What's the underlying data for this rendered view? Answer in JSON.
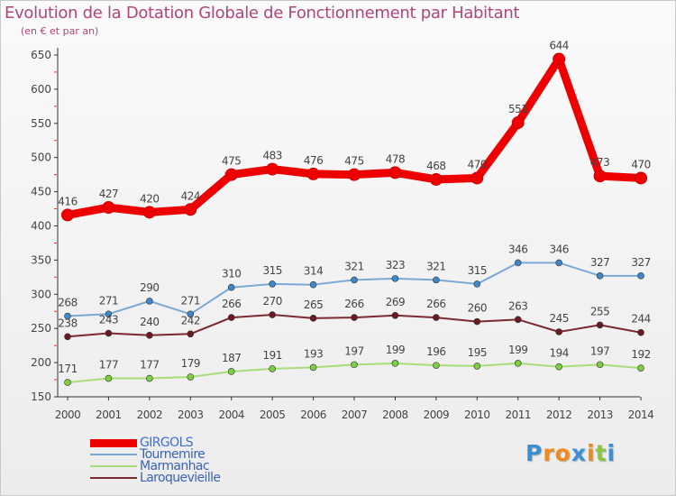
{
  "chart_data": {
    "type": "line",
    "title": "Evolution de la Dotation Globale de Fonctionnement par Habitant",
    "subtitle": "(en € et par an)",
    "xlabel": "",
    "ylabel": "",
    "ylim": [
      150,
      650
    ],
    "yticks": [
      150,
      200,
      250,
      300,
      350,
      400,
      450,
      500,
      550,
      600,
      650
    ],
    "categories": [
      "2000",
      "2001",
      "2002",
      "2003",
      "2004",
      "2005",
      "2006",
      "2007",
      "2008",
      "2009",
      "2010",
      "2011",
      "2012",
      "2013",
      "2014"
    ],
    "grid": false,
    "legend_position": "bottom-left",
    "series": [
      {
        "name": "GIRGOLS",
        "color": "#ee0000",
        "marker_color": "#ee0000",
        "values": [
          416,
          427,
          420,
          424,
          475,
          483,
          476,
          475,
          478,
          468,
          470,
          551,
          644,
          473,
          470
        ],
        "labels": [
          "416",
          "427",
          "420",
          "424",
          "475",
          "483",
          "476",
          "475",
          "478",
          "468",
          "470",
          "551",
          "644",
          "473",
          "470"
        ]
      },
      {
        "name": "Tournemire",
        "color": "#7aa9d6",
        "marker_color": "#3f87c9",
        "values": [
          268,
          271,
          290,
          271,
          310,
          315,
          314,
          321,
          323,
          321,
          315,
          346,
          346,
          327,
          327
        ],
        "labels": [
          "268",
          "271",
          "290",
          "271",
          "310",
          "315",
          "314",
          "321",
          "323",
          "321",
          "315",
          "346",
          "346",
          "327",
          "327"
        ]
      },
      {
        "name": "Marmanhac",
        "color": "#a8de7a",
        "marker_color": "#7ccf3e",
        "values": [
          171,
          177,
          177,
          179,
          187,
          191,
          193,
          197,
          199,
          196,
          195,
          199,
          194,
          197,
          192
        ],
        "labels": [
          "171",
          "177",
          "177",
          "179",
          "187",
          "191",
          "193",
          "197",
          "199",
          "196",
          "195",
          "199",
          "194",
          "197",
          "192"
        ]
      },
      {
        "name": "Laroquevieille",
        "color": "#7a2a30",
        "marker_color": "#6a1a20",
        "values": [
          238,
          243,
          240,
          242,
          266,
          270,
          265,
          266,
          269,
          266,
          260,
          263,
          245,
          255,
          244
        ],
        "labels": [
          "238",
          "243",
          "240",
          "242",
          "266",
          "270",
          "265",
          "266",
          "269",
          "266",
          "260",
          "263",
          "245",
          "255",
          "244"
        ]
      }
    ],
    "legend_entries": [
      "GIRGOLS",
      "Tournemire",
      "Marmanhac",
      "Laroquevieille"
    ]
  },
  "logo": {
    "text": "Proxiti",
    "letters": [
      "P",
      "r",
      "o",
      "x",
      "i",
      "t",
      "i"
    ],
    "letter_colors": [
      "#3b8fd6",
      "#f08a1c",
      "#f08a1c",
      "#3b8fd6",
      "#f08a1c",
      "#8bc63f",
      "#3b8fd6"
    ]
  },
  "colors": {
    "title": "#b0457b",
    "axis": "#333333",
    "label": "#444444",
    "tick_mark": "#dd3333"
  }
}
